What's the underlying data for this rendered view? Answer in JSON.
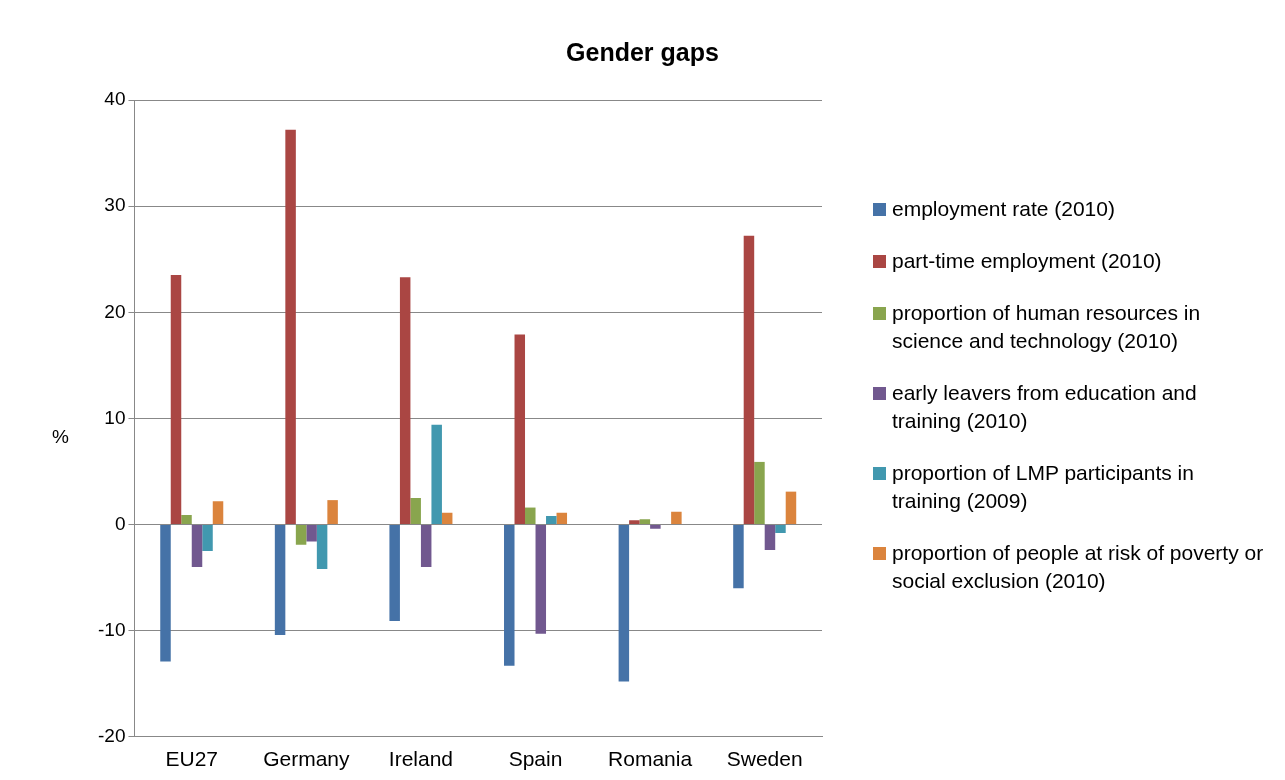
{
  "chart_data": {
    "type": "bar",
    "title": "Gender gaps",
    "ylabel": "%",
    "categories": [
      "EU27",
      "Germany",
      "Ireland",
      "Spain",
      "Romania",
      "Sweden"
    ],
    "series": [
      {
        "name": "employment rate (2010)",
        "color": "#4572a7",
        "values": [
          -12.9,
          -10.4,
          -9.1,
          -13.3,
          -14.8,
          -6.0
        ]
      },
      {
        "name": "part-time employment (2010)",
        "color": "#aa4643",
        "values": [
          23.5,
          37.2,
          23.3,
          17.9,
          0.4,
          27.2
        ]
      },
      {
        "name": "proportion of human resources in science and technology  (2010)",
        "color": "#89a54e",
        "values": [
          0.9,
          -1.9,
          2.5,
          1.6,
          0.5,
          5.9
        ]
      },
      {
        "name": "early leavers from education and training (2010)",
        "color": "#71588f",
        "values": [
          -4.0,
          -1.6,
          -4.0,
          -10.3,
          -0.4,
          -2.4
        ]
      },
      {
        "name": "proportion of LMP participants in training  (2009)",
        "color": "#4198af",
        "values": [
          -2.5,
          -4.2,
          9.4,
          0.8,
          null,
          -0.8
        ]
      },
      {
        "name": "proportion of people at risk of poverty or social exclusion (2010)",
        "color": "#db843d",
        "values": [
          2.2,
          2.3,
          1.1,
          1.1,
          1.2,
          3.1
        ]
      }
    ],
    "ylim": [
      -20,
      40
    ],
    "yticks": [
      -20,
      -10,
      0,
      10,
      20,
      30,
      40
    ],
    "grid": "y",
    "legend": "right"
  }
}
